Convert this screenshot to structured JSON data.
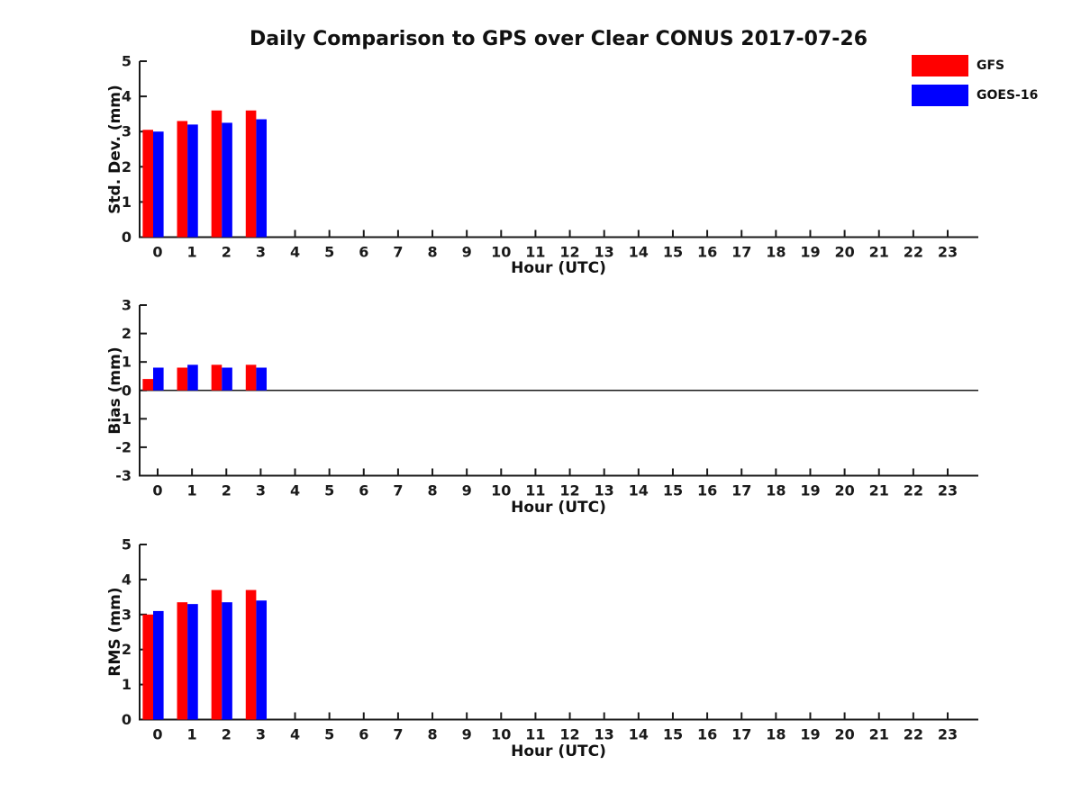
{
  "chart_data": {
    "type": "bar",
    "title": "Daily Comparison to GPS over Clear CONUS 2017-07-26",
    "hours": [
      0,
      1,
      2,
      3,
      4,
      5,
      6,
      7,
      8,
      9,
      10,
      11,
      12,
      13,
      14,
      15,
      16,
      17,
      18,
      19,
      20,
      21,
      22,
      23
    ],
    "legend_items": [
      {
        "label": "GFS",
        "color": "#ff0000"
      },
      {
        "label": "GOES-16",
        "color": "#0000ff"
      }
    ],
    "ink_color": "#1a1a1a",
    "subplots": [
      {
        "name": "std-dev",
        "ylabel": "Std. Dev. (mm)",
        "xlabel": "Hour (UTC)",
        "ylim": [
          0,
          5
        ],
        "yticks": [
          0,
          1,
          2,
          3,
          4,
          5
        ],
        "zero_line": false,
        "series": [
          {
            "name": "GFS",
            "color": "#ff0000",
            "hours": [
              0,
              1,
              2,
              3
            ],
            "values": [
              3.05,
              3.3,
              3.6,
              3.6
            ]
          },
          {
            "name": "GOES-16",
            "color": "#0000ff",
            "hours": [
              0,
              1,
              2,
              3
            ],
            "values": [
              3.0,
              3.2,
              3.25,
              3.35
            ]
          }
        ]
      },
      {
        "name": "bias",
        "ylabel": "Bias (mm)",
        "xlabel": "Hour (UTC)",
        "ylim": [
          -3,
          3
        ],
        "yticks": [
          -3,
          -2,
          -1,
          0,
          1,
          2,
          3
        ],
        "zero_line": true,
        "series": [
          {
            "name": "GFS",
            "color": "#ff0000",
            "hours": [
              0,
              1,
              2,
              3
            ],
            "values": [
              0.4,
              0.8,
              0.9,
              0.9
            ]
          },
          {
            "name": "GOES-16",
            "color": "#0000ff",
            "hours": [
              0,
              1,
              2,
              3
            ],
            "values": [
              0.8,
              0.9,
              0.8,
              0.8
            ]
          }
        ]
      },
      {
        "name": "rms",
        "ylabel": "RMS (mm)",
        "xlabel": "Hour (UTC)",
        "ylim": [
          0,
          5
        ],
        "yticks": [
          0,
          1,
          2,
          3,
          4,
          5
        ],
        "zero_line": false,
        "series": [
          {
            "name": "GFS",
            "color": "#ff0000",
            "hours": [
              0,
              1,
              2,
              3
            ],
            "values": [
              3.0,
              3.35,
              3.7,
              3.7
            ]
          },
          {
            "name": "GOES-16",
            "color": "#0000ff",
            "hours": [
              0,
              1,
              2,
              3
            ],
            "values": [
              3.1,
              3.3,
              3.35,
              3.4
            ]
          }
        ]
      }
    ]
  }
}
